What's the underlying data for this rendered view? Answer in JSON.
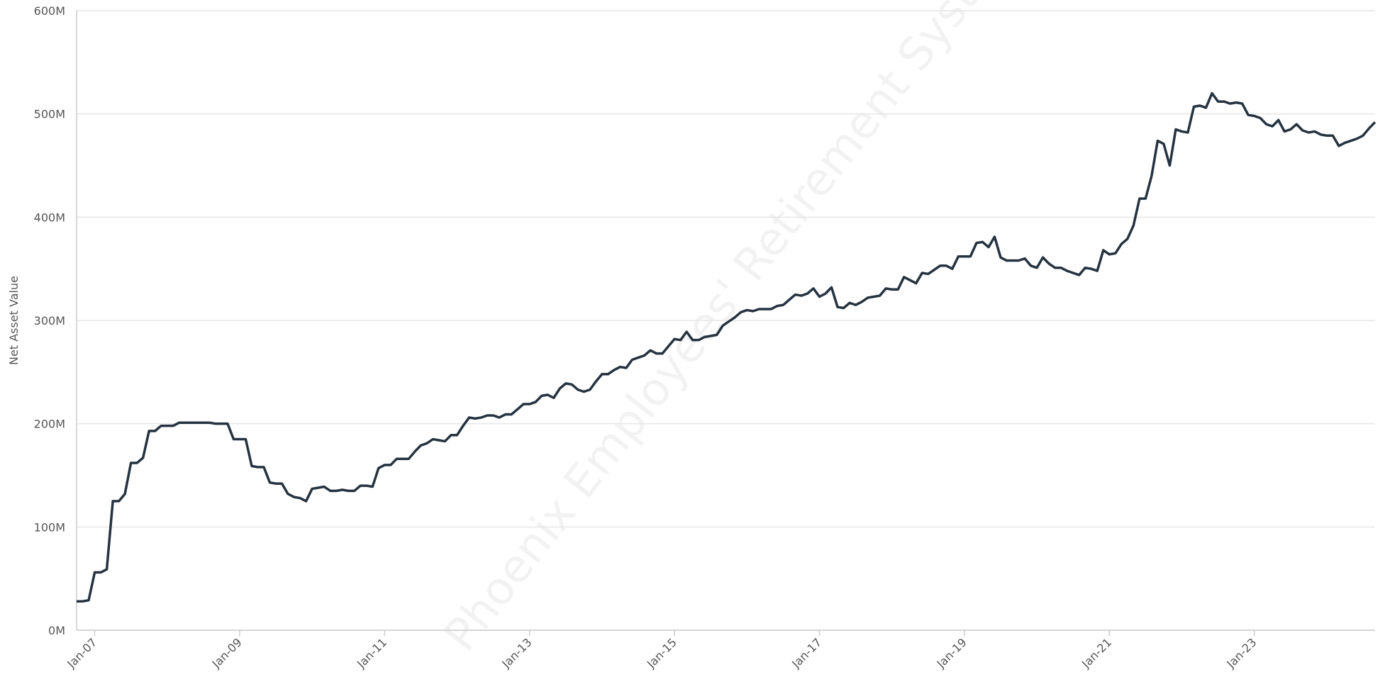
{
  "chart_data": {
    "type": "line",
    "y_label": "Net Asset Value",
    "watermark": "Phoenix Employees' Retirement System",
    "x": [
      "2006-10",
      "2006-11",
      "2006-12",
      "2007-01",
      "2007-02",
      "2007-03",
      "2007-04",
      "2007-05",
      "2007-06",
      "2007-07",
      "2007-08",
      "2007-09",
      "2007-10",
      "2007-11",
      "2007-12",
      "2008-01",
      "2008-02",
      "2008-03",
      "2008-04",
      "2008-05",
      "2008-06",
      "2008-07",
      "2008-08",
      "2008-09",
      "2008-10",
      "2008-11",
      "2008-12",
      "2009-01",
      "2009-02",
      "2009-03",
      "2009-04",
      "2009-05",
      "2009-06",
      "2009-07",
      "2009-08",
      "2009-09",
      "2009-10",
      "2009-11",
      "2009-12",
      "2010-01",
      "2010-02",
      "2010-03",
      "2010-04",
      "2010-05",
      "2010-06",
      "2010-07",
      "2010-08",
      "2010-09",
      "2010-10",
      "2010-11",
      "2010-12",
      "2011-01",
      "2011-02",
      "2011-03",
      "2011-04",
      "2011-05",
      "2011-06",
      "2011-07",
      "2011-08",
      "2011-09",
      "2011-10",
      "2011-11",
      "2011-12",
      "2012-01",
      "2012-02",
      "2012-03",
      "2012-04",
      "2012-05",
      "2012-06",
      "2012-07",
      "2012-08",
      "2012-09",
      "2012-10",
      "2012-11",
      "2012-12",
      "2013-01",
      "2013-02",
      "2013-03",
      "2013-04",
      "2013-05",
      "2013-06",
      "2013-07",
      "2013-08",
      "2013-09",
      "2013-10",
      "2013-11",
      "2013-12",
      "2014-01",
      "2014-02",
      "2014-03",
      "2014-04",
      "2014-05",
      "2014-06",
      "2014-07",
      "2014-08",
      "2014-09",
      "2014-10",
      "2014-11",
      "2014-12",
      "2015-01",
      "2015-02",
      "2015-03",
      "2015-04",
      "2015-05",
      "2015-06",
      "2015-07",
      "2015-08",
      "2015-09",
      "2015-10",
      "2015-11",
      "2015-12",
      "2016-01",
      "2016-02",
      "2016-03",
      "2016-04",
      "2016-05",
      "2016-06",
      "2016-07",
      "2016-08",
      "2016-09",
      "2016-10",
      "2016-11",
      "2016-12",
      "2017-01",
      "2017-02",
      "2017-03",
      "2017-04",
      "2017-05",
      "2017-06",
      "2017-07",
      "2017-08",
      "2017-09",
      "2017-10",
      "2017-11",
      "2017-12",
      "2018-01",
      "2018-02",
      "2018-03",
      "2018-04",
      "2018-05",
      "2018-06",
      "2018-07",
      "2018-08",
      "2018-09",
      "2018-10",
      "2018-11",
      "2018-12",
      "2019-01",
      "2019-02",
      "2019-03",
      "2019-04",
      "2019-05",
      "2019-06",
      "2019-07",
      "2019-08",
      "2019-09",
      "2019-10",
      "2019-11",
      "2019-12",
      "2020-01",
      "2020-02",
      "2020-03",
      "2020-04",
      "2020-05",
      "2020-06",
      "2020-07",
      "2020-08",
      "2020-09",
      "2020-10",
      "2020-11",
      "2020-12",
      "2021-01",
      "2021-02",
      "2021-03",
      "2021-04",
      "2021-05",
      "2021-06",
      "2021-07",
      "2021-08",
      "2021-09",
      "2021-10",
      "2021-11",
      "2021-12",
      "2022-01",
      "2022-02",
      "2022-03",
      "2022-04",
      "2022-05",
      "2022-06",
      "2022-07",
      "2022-08",
      "2022-09",
      "2022-10",
      "2022-11",
      "2022-12",
      "2023-01",
      "2023-02",
      "2023-03",
      "2023-04",
      "2023-05",
      "2023-06",
      "2023-07",
      "2023-08",
      "2023-09",
      "2023-10",
      "2023-11",
      "2023-12",
      "2024-01",
      "2024-02",
      "2024-03",
      "2024-04",
      "2024-05",
      "2024-06",
      "2024-07",
      "2024-08",
      "2024-09"
    ],
    "series": [
      {
        "name": "Net Asset Value",
        "color": "#253340",
        "values": [
          28,
          28,
          29,
          56,
          56,
          59,
          125,
          125,
          132,
          162,
          162,
          167,
          193,
          193,
          198,
          198,
          198,
          201,
          201,
          201,
          201,
          201,
          201,
          200,
          200,
          200,
          185,
          185,
          185,
          159,
          158,
          158,
          143,
          142,
          142,
          132,
          129,
          128,
          125,
          137,
          138,
          139,
          135,
          135,
          136,
          135,
          135,
          140,
          140,
          139,
          157,
          160,
          160,
          166,
          166,
          166,
          173,
          179,
          181,
          185,
          184,
          183,
          189,
          189,
          198,
          206,
          205,
          206,
          208,
          208,
          206,
          209,
          209,
          214,
          219,
          219,
          221,
          227,
          228,
          225,
          234,
          239,
          238,
          233,
          231,
          233,
          241,
          248,
          248,
          252,
          255,
          254,
          262,
          264,
          266,
          271,
          268,
          268,
          275,
          282,
          281,
          289,
          281,
          281,
          284,
          285,
          286,
          295,
          299,
          303,
          308,
          310,
          309,
          311,
          311,
          311,
          314,
          315,
          320,
          325,
          324,
          326,
          331,
          323,
          326,
          332,
          313,
          312,
          317,
          315,
          318,
          322,
          323,
          324,
          331,
          330,
          330,
          342,
          339,
          336,
          346,
          345,
          349,
          353,
          353,
          350,
          362,
          362,
          362,
          375,
          376,
          371,
          381,
          361,
          358,
          358,
          358,
          360,
          353,
          351,
          361,
          355,
          351,
          351,
          348,
          346,
          344,
          351,
          350,
          348,
          368,
          364,
          365,
          374,
          379,
          392,
          418,
          418,
          440,
          474,
          471,
          450,
          485,
          483,
          482,
          507,
          508,
          506,
          520,
          512,
          512,
          510,
          511,
          510,
          499,
          498,
          496,
          490,
          488,
          494,
          483,
          485,
          490,
          484,
          482,
          483,
          480,
          479,
          479,
          469,
          472,
          474,
          476,
          479,
          486,
          492
        ]
      }
    ],
    "xlim": [
      "2006-10",
      "2024-09"
    ],
    "xticks": [
      {
        "value": "2007-01",
        "label": "Jan-07"
      },
      {
        "value": "2009-01",
        "label": "Jan-09"
      },
      {
        "value": "2011-01",
        "label": "Jan-11"
      },
      {
        "value": "2013-01",
        "label": "Jan-13"
      },
      {
        "value": "2015-01",
        "label": "Jan-15"
      },
      {
        "value": "2017-01",
        "label": "Jan-17"
      },
      {
        "value": "2019-01",
        "label": "Jan-19"
      },
      {
        "value": "2021-01",
        "label": "Jan-21"
      },
      {
        "value": "2023-01",
        "label": "Jan-23"
      }
    ],
    "ylim": [
      0,
      600
    ],
    "yticks": [
      {
        "value": 0,
        "label": "0M"
      },
      {
        "value": 100,
        "label": "100M"
      },
      {
        "value": 200,
        "label": "200M"
      },
      {
        "value": 300,
        "label": "300M"
      },
      {
        "value": 400,
        "label": "400M"
      },
      {
        "value": 500,
        "label": "500M"
      },
      {
        "value": 600,
        "label": "600M"
      }
    ],
    "grid": true
  }
}
